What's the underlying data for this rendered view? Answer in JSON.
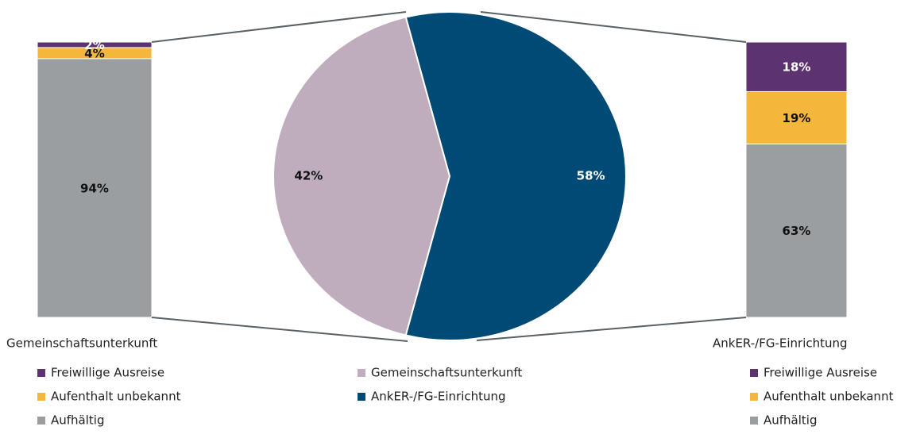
{
  "chart_data": [
    {
      "type": "bar",
      "stacked": true,
      "categories": [
        "Gemeinschaftsunterkunft"
      ],
      "ylim": [
        0,
        100
      ],
      "series": [
        {
          "name": "Freiwillige Ausreise",
          "color": "#5c3370",
          "values": [
            2
          ],
          "value_labels": [
            "2%"
          ]
        },
        {
          "name": "Aufenthalt unbekannt",
          "color": "#f5b73b",
          "values": [
            4
          ],
          "value_labels": [
            "4%"
          ]
        },
        {
          "name": "Aufhältig",
          "color": "#9a9ea1",
          "values": [
            94
          ],
          "value_labels": [
            "94%"
          ]
        }
      ]
    },
    {
      "type": "pie",
      "categories": [
        "Gemeinschaftsunterkunft",
        "AnkER-/FG-Einrichtung"
      ],
      "values": [
        42,
        58
      ],
      "value_labels": [
        "42%",
        "58%"
      ],
      "colors": [
        "#bfadbd",
        "#004a76"
      ]
    },
    {
      "type": "bar",
      "stacked": true,
      "categories": [
        "AnkER-/FG-Einrichtung"
      ],
      "ylim": [
        0,
        100
      ],
      "series": [
        {
          "name": "Freiwillige Ausreise",
          "color": "#5c3370",
          "values": [
            18
          ],
          "value_labels": [
            "18%"
          ]
        },
        {
          "name": "Aufenthalt unbekannt",
          "color": "#f5b73b",
          "values": [
            19
          ],
          "value_labels": [
            "19%"
          ]
        },
        {
          "name": "Aufhältig",
          "color": "#9a9ea1",
          "values": [
            63
          ],
          "value_labels": [
            "63%"
          ]
        }
      ]
    }
  ]
}
